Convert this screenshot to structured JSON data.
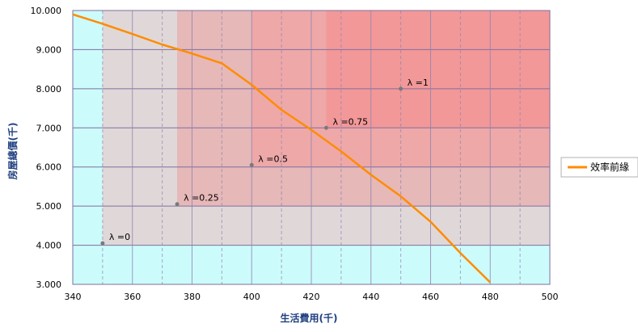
{
  "chart_data": {
    "type": "line",
    "title": "",
    "xlabel": "生活費用(千)",
    "ylabel": "房屋總價(千)",
    "xlim": [
      340,
      500
    ],
    "ylim": [
      3000,
      10000
    ],
    "x_ticks": [
      "340",
      "360",
      "380",
      "400",
      "420",
      "440",
      "460",
      "480",
      "500"
    ],
    "y_ticks": [
      "3.000",
      "4.000",
      "5.000",
      "6.000",
      "7.000",
      "8.000",
      "9.000",
      "10.000"
    ],
    "grid": true,
    "legend_position": "right",
    "series": [
      {
        "name": "效率前緣",
        "color": "#ff8c00",
        "x": [
          340,
          350,
          360,
          370,
          380,
          390,
          400,
          410,
          420,
          430,
          440,
          450,
          460,
          470,
          480
        ],
        "y": [
          9900,
          9660,
          9400,
          9130,
          8900,
          8650,
          8100,
          7460,
          6950,
          6400,
          5800,
          5250,
          4600,
          3800,
          3050
        ]
      }
    ],
    "points": [
      {
        "label": "λ =0",
        "x": 350,
        "y": 4050
      },
      {
        "label": "λ =0.25",
        "x": 375,
        "y": 5050
      },
      {
        "label": "λ =0.5",
        "x": 400,
        "y": 6050
      },
      {
        "label": "λ =0.75",
        "x": 425,
        "y": 7000
      },
      {
        "label": "λ =1",
        "x": 450,
        "y": 8000
      }
    ],
    "region_colors": {
      "outer": "#ccfbfb",
      "band1": "#e0d8d8",
      "band2": "#e6b8b8",
      "band3": "#eea8a8",
      "band4": "#f29898"
    }
  }
}
